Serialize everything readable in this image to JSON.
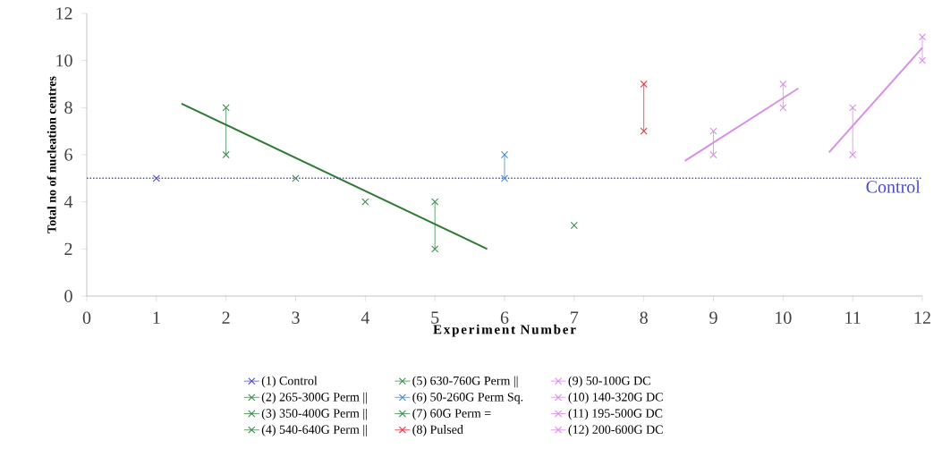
{
  "chart_data": {
    "type": "line",
    "xlabel": "Experiment Number",
    "ylabel": "Total no of nucleation centres",
    "xlim": [
      0,
      12
    ],
    "ylim": [
      0,
      12
    ],
    "xticks": [
      0,
      1,
      2,
      3,
      4,
      5,
      6,
      7,
      8,
      9,
      10,
      11,
      12
    ],
    "yticks": [
      0,
      2,
      4,
      6,
      8,
      10,
      12
    ],
    "marker": "cross",
    "legend": "bottom",
    "grid": false,
    "ref_lines": [
      {
        "axis": "y",
        "value": 5,
        "label": "Control",
        "color": "#4a4ad0",
        "line_style": "dotted"
      }
    ],
    "series": [
      {
        "name": "(1) Control",
        "color": "#4a4ad0",
        "x": [
          1
        ],
        "values": [
          5
        ]
      },
      {
        "name": "(2) 265-300G Perm ||",
        "color": "#3c8c4c",
        "x": [
          2,
          2
        ],
        "values": [
          6,
          8
        ]
      },
      {
        "name": "(3) 350-400G Perm ||",
        "color": "#3c8c4c",
        "x": [
          3
        ],
        "values": [
          5
        ]
      },
      {
        "name": "(4) 540-640G Perm ||",
        "color": "#3c8c4c",
        "x": [
          4
        ],
        "values": [
          4
        ]
      },
      {
        "name": "(5) 630-760G Perm ||",
        "color": "#3c8c4c",
        "x": [
          5,
          5
        ],
        "values": [
          2,
          4
        ]
      },
      {
        "name": "(6) 50-260G Perm Sq.",
        "color": "#4a8ad0",
        "x": [
          6,
          6
        ],
        "values": [
          5,
          6
        ]
      },
      {
        "name": "(7) 60G Perm =",
        "color": "#3c8c4c",
        "x": [
          7
        ],
        "values": [
          3
        ]
      },
      {
        "name": "(8) Pulsed",
        "color": "#f03040",
        "x": [
          8,
          8
        ],
        "values": [
          7,
          9
        ]
      },
      {
        "name": "(9) 50-100G DC",
        "color": "#d88ee8",
        "x": [
          9,
          9
        ],
        "values": [
          6,
          7
        ]
      },
      {
        "name": "(10) 140-320G DC",
        "color": "#d88ee8",
        "x": [
          10,
          10
        ],
        "values": [
          8,
          9
        ]
      },
      {
        "name": "(11) 195-500G DC",
        "color": "#d88ee8",
        "x": [
          11,
          11
        ],
        "values": [
          6,
          8
        ]
      },
      {
        "name": "(12) 200-600G DC",
        "color": "#d88ee8",
        "x": [
          12,
          12
        ],
        "values": [
          10,
          11
        ]
      },
      {
        "color": "#2f7a35",
        "marker": "none",
        "x": [
          1.36,
          5.75
        ],
        "values": [
          8.17,
          2.0
        ]
      },
      {
        "color": "#d88ee8",
        "marker": "none",
        "x": [
          8.59,
          10.22
        ],
        "values": [
          5.74,
          8.82
        ]
      },
      {
        "color": "#d88ee8",
        "marker": "none",
        "x": [
          10.66,
          12
        ],
        "values": [
          6.1,
          10.54
        ]
      }
    ]
  }
}
